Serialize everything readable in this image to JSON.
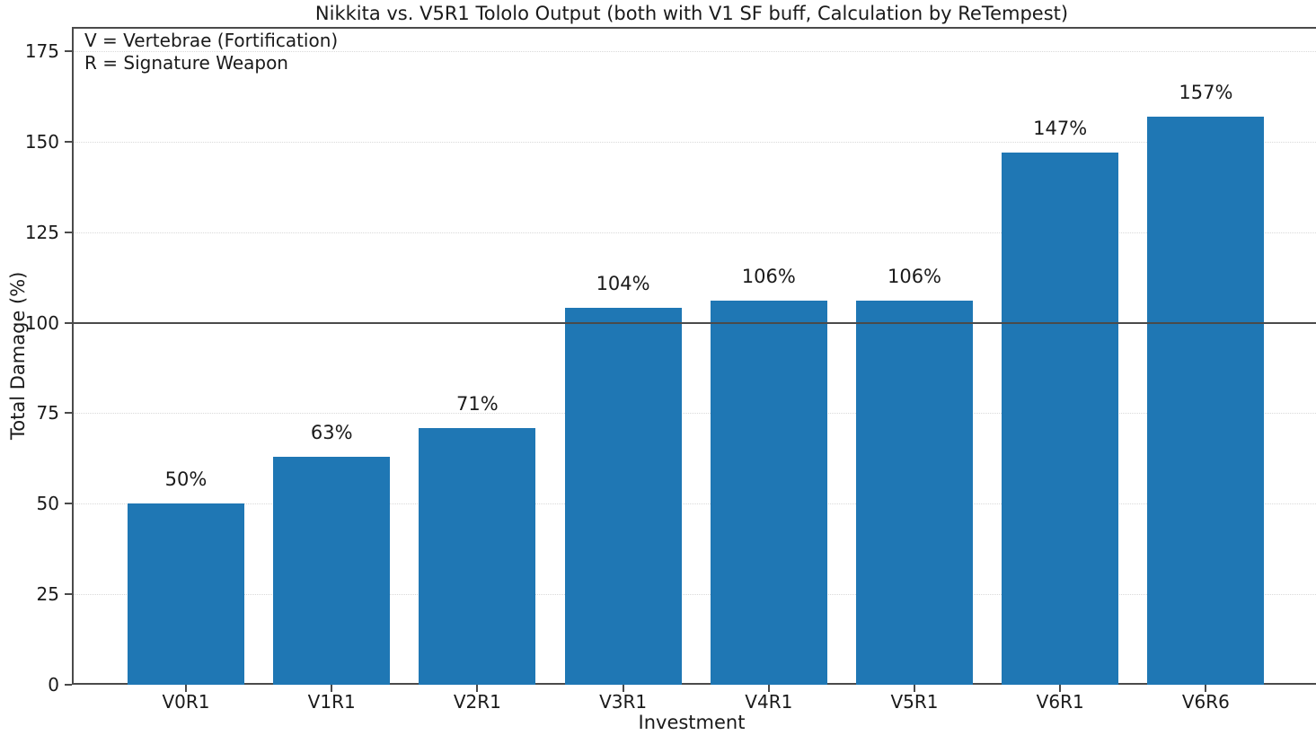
{
  "chart_data": {
    "type": "bar",
    "title": "Nikkita vs. V5R1 Tololo Output (both with V1 SF buff, Calculation by ReTempest)",
    "categories": [
      "V0R1",
      "V1R1",
      "V2R1",
      "V3R1",
      "V4R1",
      "V5R1",
      "V6R1",
      "V6R6"
    ],
    "values": [
      50,
      63,
      71,
      104,
      106,
      106,
      147,
      157
    ],
    "bar_labels": [
      "50%",
      "63%",
      "71%",
      "104%",
      "106%",
      "106%",
      "147%",
      "157%"
    ],
    "xlabel": "Investment",
    "ylabel": "Total Damage (%)",
    "yticks": [
      0,
      25,
      50,
      75,
      100,
      125,
      150,
      175
    ],
    "ylim": [
      0,
      181.7
    ],
    "reference_line": 100,
    "grid": "horizontal-dotted",
    "legend": "none",
    "bar_color": "#1f77b4",
    "annotation": {
      "line1": "V = Vertebrae (Fortification)",
      "line2": "R = Signature Weapon"
    }
  }
}
